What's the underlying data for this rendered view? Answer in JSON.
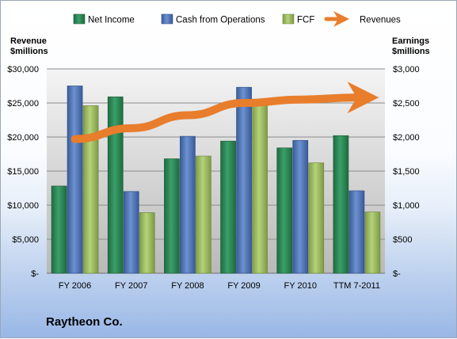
{
  "chart_data": {
    "type": "bar",
    "categories": [
      "FY 2006",
      "FY 2007",
      "FY 2008",
      "FY 2009",
      "FY 2010",
      "TTM 7-2011"
    ],
    "series": [
      {
        "name": "Net Income",
        "axis": "right",
        "values": [
          1280,
          2590,
          1680,
          1940,
          1840,
          2020
        ],
        "color": "#2e8b57"
      },
      {
        "name": "Cash from Operations",
        "axis": "right",
        "values": [
          2750,
          1200,
          2010,
          2730,
          1950,
          1210
        ],
        "color": "#4a72b8"
      },
      {
        "name": "FCF",
        "axis": "right",
        "values": [
          2460,
          890,
          1720,
          2470,
          1620,
          900
        ],
        "color": "#9fbf62"
      }
    ],
    "line_series": {
      "name": "Revenues",
      "axis": "left",
      "values": [
        19700,
        21300,
        23200,
        25000,
        25500,
        25800
      ],
      "color": "#e87d2c"
    },
    "left_axis": {
      "title_line1": "Revenue",
      "title_line2": "$millions",
      "ylim": [
        0,
        30000
      ],
      "tick_labels": [
        "$-",
        "$5,000",
        "$10,000",
        "$15,000",
        "$20,000",
        "$25,000",
        "$30,000"
      ]
    },
    "right_axis": {
      "title_line1": "Earnings",
      "title_line2": "$millions",
      "ylim": [
        0,
        3000
      ],
      "tick_labels": [
        "$-",
        "$500",
        "$1,000",
        "$1,500",
        "$2,000",
        "$2,500",
        "$3,000"
      ]
    },
    "grid": true,
    "legend_position": "top"
  },
  "company": "Raytheon Co."
}
